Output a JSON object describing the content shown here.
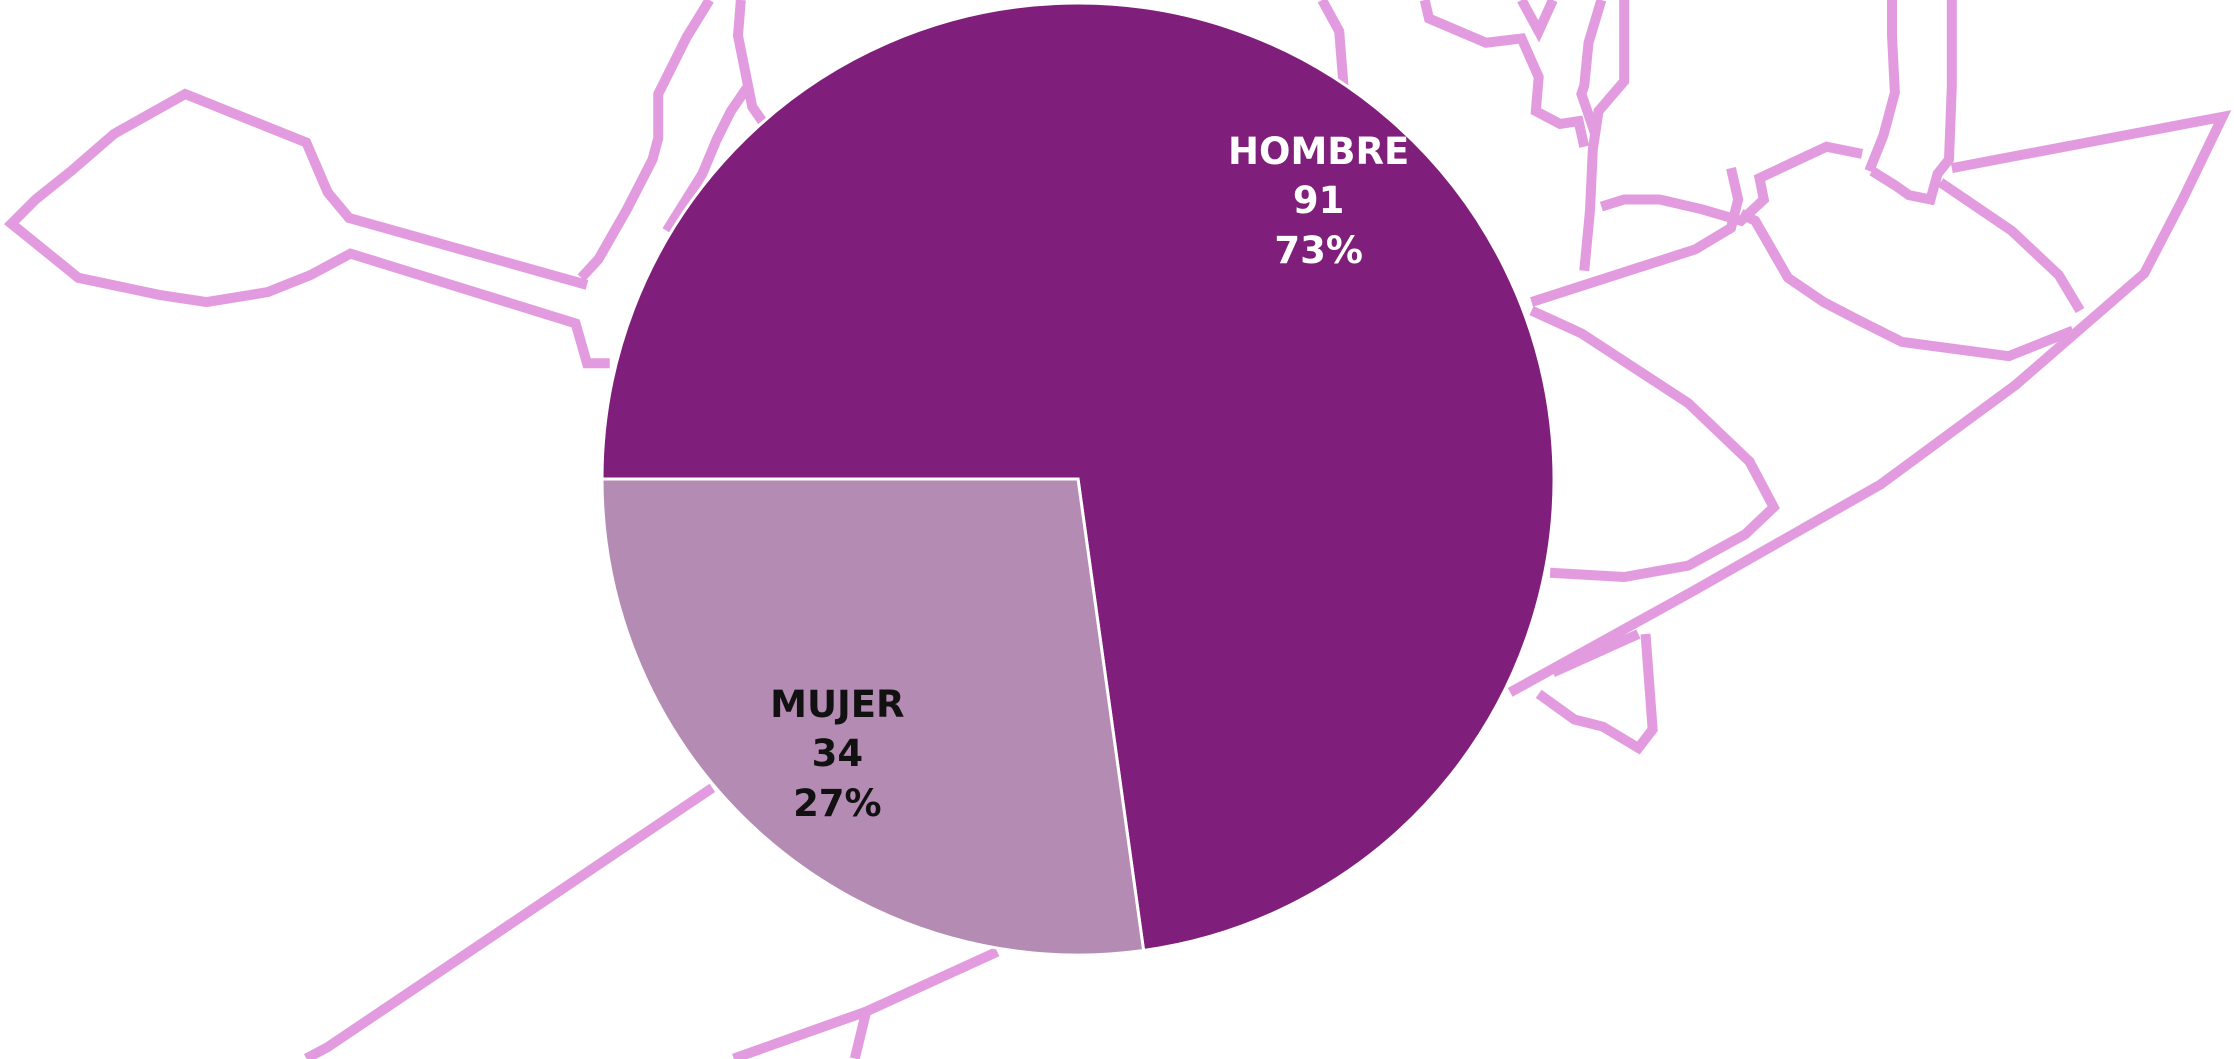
{
  "chart_data": {
    "type": "pie",
    "categories": [
      "HOMBRE",
      "MUJER"
    ],
    "values": [
      91,
      34
    ],
    "percent_labels": [
      "73%",
      "27%"
    ],
    "colors": [
      "#7f1f7b",
      "#b48bb3"
    ],
    "label_colors": [
      "#ffffff",
      "#111111"
    ]
  }
}
